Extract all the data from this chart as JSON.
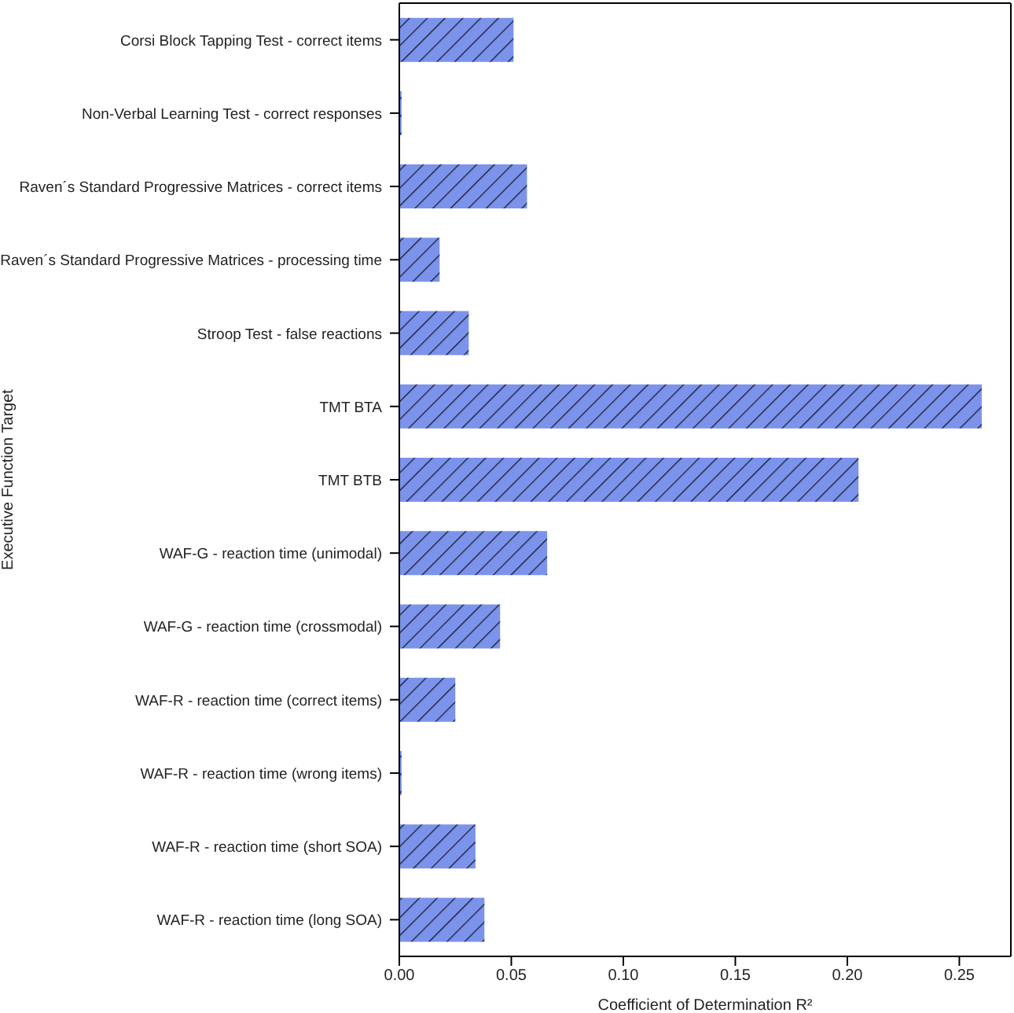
{
  "chart_data": {
    "type": "bar",
    "orientation": "horizontal",
    "xlabel": "Coefficient of Determination R²",
    "ylabel": "Executive Function Target",
    "categories": [
      "Corsi Block Tapping Test - correct items",
      "Non-Verbal Learning Test - correct responses",
      "Raven´s Standard Progressive Matrices - correct items",
      "Raven´s Standard Progressive Matrices - processing time",
      "Stroop Test -  false reactions",
      "TMT BTA",
      "TMT BTB",
      "WAF-G - reaction time (unimodal)",
      "WAF-G - reaction time (crossmodal)",
      "WAF-R - reaction time (correct items)",
      "WAF-R - reaction time (wrong items)",
      "WAF-R - reaction time (short SOA)",
      "WAF-R - reaction time (long SOA)"
    ],
    "values": [
      0.051,
      0.001,
      0.057,
      0.018,
      0.031,
      0.26,
      0.205,
      0.066,
      0.045,
      0.025,
      0.001,
      0.034,
      0.038
    ],
    "color": "#7b93ea",
    "xlim": [
      0,
      0.273
    ],
    "xticks": [
      {
        "value": 0,
        "label": "0.00"
      },
      {
        "value": 0.05,
        "label": "0.05"
      },
      {
        "value": 0.1,
        "label": "0.10"
      },
      {
        "value": 0.15,
        "label": "0.15"
      },
      {
        "value": 0.2,
        "label": "0.20"
      },
      {
        "value": 0.25,
        "label": "0.25"
      }
    ],
    "grid": false,
    "legend": false
  }
}
